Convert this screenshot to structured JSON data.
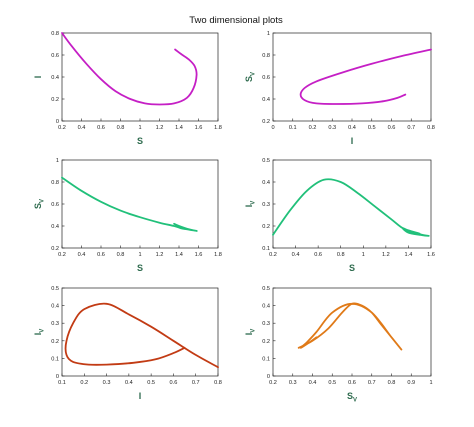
{
  "figure_title": "Two dimensional plots",
  "chart_data": [
    {
      "id": "p1",
      "type": "line",
      "xlabel": "S",
      "ylabel": "I",
      "xlabel_sub": "",
      "ylabel_sub": "",
      "xlim": [
        0.2,
        1.8
      ],
      "ylim": [
        0,
        0.8
      ],
      "xticks": [
        "0.2",
        "0.4",
        "0.6",
        "0.8",
        "1",
        "1.2",
        "1.4",
        "1.6",
        "1.8"
      ],
      "yticks": [
        "0",
        "0.2",
        "0.4",
        "0.6",
        "0.8"
      ],
      "color": "#c51fc5",
      "x": [
        0.2,
        0.3,
        0.45,
        0.6,
        0.75,
        0.9,
        1.05,
        1.2,
        1.35,
        1.48,
        1.55,
        1.58,
        1.56,
        1.5,
        1.42,
        1.36
      ],
      "y": [
        0.8,
        0.68,
        0.52,
        0.38,
        0.27,
        0.2,
        0.16,
        0.15,
        0.16,
        0.21,
        0.3,
        0.42,
        0.5,
        0.56,
        0.61,
        0.65
      ]
    },
    {
      "id": "p2",
      "type": "line",
      "xlabel": "I",
      "ylabel": "S",
      "xlabel_sub": "",
      "ylabel_sub": "V",
      "xlim": [
        0,
        0.8
      ],
      "ylim": [
        0.2,
        1
      ],
      "xticks": [
        "0",
        "0.1",
        "0.2",
        "0.3",
        "0.4",
        "0.5",
        "0.6",
        "0.7",
        "0.8"
      ],
      "yticks": [
        "0.2",
        "0.4",
        "0.6",
        "0.8",
        "1"
      ],
      "color": "#c51fc5",
      "x": [
        0.8,
        0.65,
        0.5,
        0.35,
        0.22,
        0.16,
        0.14,
        0.16,
        0.22,
        0.32,
        0.45,
        0.56,
        0.63,
        0.67
      ],
      "y": [
        0.85,
        0.79,
        0.72,
        0.64,
        0.56,
        0.5,
        0.44,
        0.39,
        0.36,
        0.355,
        0.36,
        0.38,
        0.41,
        0.44
      ]
    },
    {
      "id": "p3",
      "type": "line",
      "xlabel": "S",
      "ylabel": "S",
      "xlabel_sub": "",
      "ylabel_sub": "V",
      "xlim": [
        0.2,
        1.8
      ],
      "ylim": [
        0.2,
        1
      ],
      "xticks": [
        "0.2",
        "0.4",
        "0.6",
        "0.8",
        "1",
        "1.2",
        "1.4",
        "1.6",
        "1.8"
      ],
      "yticks": [
        "0.2",
        "0.4",
        "0.6",
        "0.8",
        "1"
      ],
      "color": "#21c07a",
      "x": [
        0.2,
        0.4,
        0.6,
        0.8,
        1.0,
        1.2,
        1.35,
        1.42,
        1.48,
        1.55,
        1.58,
        1.5,
        1.4,
        1.35
      ],
      "y": [
        0.84,
        0.72,
        0.62,
        0.54,
        0.48,
        0.43,
        0.4,
        0.38,
        0.37,
        0.36,
        0.355,
        0.37,
        0.4,
        0.42
      ]
    },
    {
      "id": "p4",
      "type": "line",
      "xlabel": "S",
      "ylabel": "I",
      "xlabel_sub": "",
      "ylabel_sub": "V",
      "xlim": [
        0.2,
        1.6
      ],
      "ylim": [
        0.1,
        0.5
      ],
      "xticks": [
        "0.2",
        "0.4",
        "0.6",
        "0.8",
        "1",
        "1.2",
        "1.4",
        "1.6"
      ],
      "yticks": [
        "0.1",
        "0.2",
        "0.3",
        "0.4",
        "0.5"
      ],
      "color": "#21c07a",
      "x": [
        0.2,
        0.35,
        0.5,
        0.65,
        0.8,
        0.95,
        1.1,
        1.25,
        1.35,
        1.45,
        1.52,
        1.58,
        1.5,
        1.4,
        1.35,
        1.4,
        1.5
      ],
      "y": [
        0.16,
        0.27,
        0.36,
        0.41,
        0.4,
        0.35,
        0.29,
        0.23,
        0.19,
        0.17,
        0.16,
        0.155,
        0.16,
        0.17,
        0.19,
        0.18,
        0.165
      ]
    },
    {
      "id": "p5",
      "type": "line",
      "xlabel": "I",
      "ylabel": "I",
      "xlabel_sub": "",
      "ylabel_sub": "V",
      "xlim": [
        0.1,
        0.8
      ],
      "ylim": [
        0,
        0.5
      ],
      "xticks": [
        "0.1",
        "0.2",
        "0.3",
        "0.4",
        "0.5",
        "0.6",
        "0.7",
        "0.8"
      ],
      "yticks": [
        "0",
        "0.1",
        "0.2",
        "0.3",
        "0.4",
        "0.5"
      ],
      "color": "#c23b14",
      "x": [
        0.8,
        0.7,
        0.6,
        0.5,
        0.4,
        0.3,
        0.2,
        0.15,
        0.12,
        0.12,
        0.15,
        0.22,
        0.3,
        0.42,
        0.52,
        0.6,
        0.65
      ],
      "y": [
        0.05,
        0.12,
        0.2,
        0.28,
        0.35,
        0.41,
        0.38,
        0.3,
        0.2,
        0.12,
        0.08,
        0.065,
        0.065,
        0.075,
        0.095,
        0.13,
        0.16
      ]
    },
    {
      "id": "p6",
      "type": "line",
      "xlabel": "S",
      "ylabel": "I",
      "xlabel_sub": "V",
      "ylabel_sub": "V",
      "xlim": [
        0.2,
        1
      ],
      "ylim": [
        0,
        0.5
      ],
      "xticks": [
        "0.2",
        "0.3",
        "0.4",
        "0.5",
        "0.6",
        "0.7",
        "0.8",
        "0.9",
        "1"
      ],
      "yticks": [
        "0",
        "0.1",
        "0.2",
        "0.3",
        "0.4",
        "0.5"
      ],
      "color": "#e07a18",
      "x": [
        0.33,
        0.4,
        0.48,
        0.55,
        0.6,
        0.65,
        0.7,
        0.75,
        0.8,
        0.85,
        0.8,
        0.7,
        0.6,
        0.5,
        0.42,
        0.37,
        0.34,
        0.37,
        0.42
      ],
      "y": [
        0.16,
        0.2,
        0.27,
        0.36,
        0.41,
        0.4,
        0.36,
        0.29,
        0.22,
        0.15,
        0.22,
        0.36,
        0.41,
        0.36,
        0.25,
        0.19,
        0.16,
        0.18,
        0.22
      ]
    }
  ]
}
